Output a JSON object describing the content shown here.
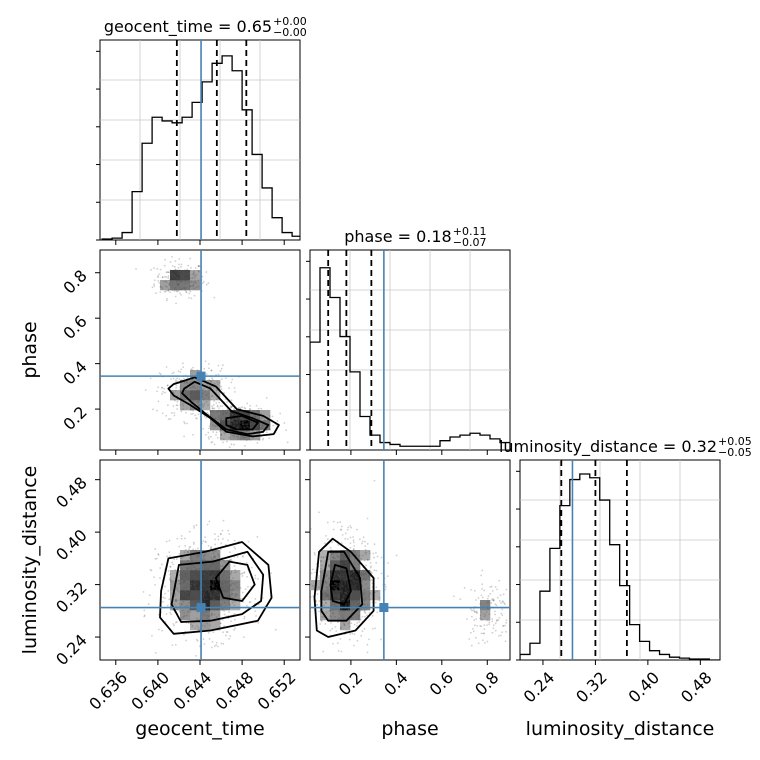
{
  "chart_data": {
    "type": "corner",
    "colors": {
      "truth": "#4682b4",
      "hist": "#000000",
      "density": "#808080",
      "grid": "#c8c8c8"
    },
    "grid": true,
    "params": [
      {
        "key": "geocent_time",
        "label": "geocent_time",
        "truth": 0.6441,
        "range": [
          0.6345,
          0.6535
        ],
        "ticks": [
          "0.636",
          "0.640",
          "0.644",
          "0.648",
          "0.652"
        ]
      },
      {
        "key": "phase",
        "label": "phase",
        "truth": 0.345,
        "range": [
          0.02,
          0.9
        ],
        "ticks": [
          "0.2",
          "0.4",
          "0.6",
          "0.8"
        ]
      },
      {
        "key": "luminosity_distance",
        "label": "luminosity_distance",
        "truth": 0.285,
        "range": [
          0.205,
          0.51
        ],
        "ticks": [
          "0.24",
          "0.32",
          "0.40",
          "0.48"
        ]
      }
    ],
    "titles": [
      {
        "param": "geocent_time",
        "name": "geocent_time",
        "value": "0.65",
        "plus": "+0.00",
        "minus": "−0.00"
      },
      {
        "param": "phase",
        "name": "phase",
        "value": "0.18",
        "plus": "+0.11",
        "minus": "−0.07"
      },
      {
        "param": "luminosity_distance",
        "name": "luminosity_distance",
        "value": "0.32",
        "plus": "+0.05",
        "minus": "−0.05"
      }
    ],
    "quantiles": {
      "geocent_time": [
        0.6418,
        0.6456,
        0.6484
      ],
      "phase": [
        0.1,
        0.18,
        0.29
      ],
      "luminosity_distance": [
        0.268,
        0.32,
        0.368
      ]
    },
    "histograms": {
      "geocent_time": {
        "edges_start": 0.6347,
        "bin_width": 0.00095,
        "counts": [
          0.005,
          0.01,
          0.04,
          0.26,
          0.52,
          0.66,
          0.64,
          0.63,
          0.66,
          0.74,
          0.85,
          0.95,
          0.99,
          0.91,
          0.7,
          0.46,
          0.28,
          0.12,
          0.04,
          0.02
        ]
      },
      "phase": {
        "edges_start": 0.02,
        "bin_width": 0.044,
        "counts": [
          0.58,
          0.98,
          0.82,
          0.61,
          0.42,
          0.18,
          0.08,
          0.04,
          0.03,
          0.02,
          0.02,
          0.02,
          0.02,
          0.05,
          0.07,
          0.08,
          0.09,
          0.08,
          0.06,
          0.04
        ]
      },
      "luminosity_distance": {
        "edges_start": 0.205,
        "bin_width": 0.0152,
        "counts": [
          0.03,
          0.09,
          0.37,
          0.6,
          0.83,
          0.97,
          1.0,
          0.98,
          0.86,
          0.62,
          0.4,
          0.19,
          0.1,
          0.05,
          0.03,
          0.015,
          0.01,
          0.005,
          0.005,
          0.0
        ]
      }
    },
    "samples_2d": [
      {
        "x": "geocent_time",
        "y": "phase",
        "clusters": [
          {
            "cx": 0.6421,
            "cy": 0.77,
            "sx": 0.0012,
            "sy": 0.04,
            "n": 220
          },
          {
            "cx": 0.6435,
            "cy": 0.27,
            "sx": 0.0016,
            "sy": 0.06,
            "n": 320
          },
          {
            "cx": 0.6478,
            "cy": 0.14,
            "sx": 0.0016,
            "sy": 0.04,
            "n": 420
          }
        ]
      },
      {
        "x": "geocent_time",
        "y": "luminosity_distance",
        "clusters": [
          {
            "cx": 0.6445,
            "cy": 0.315,
            "sx": 0.0021,
            "sy": 0.037,
            "n": 850
          }
        ]
      },
      {
        "x": "phase",
        "y": "luminosity_distance",
        "clusters": [
          {
            "cx": 0.17,
            "cy": 0.32,
            "sx": 0.07,
            "sy": 0.037,
            "n": 760
          },
          {
            "cx": 0.8,
            "cy": 0.28,
            "sx": 0.05,
            "sy": 0.025,
            "n": 130
          }
        ]
      }
    ],
    "contours": [
      {
        "x": "geocent_time",
        "y": "phase",
        "levels": [
          [
            [
              0.6415,
              0.31
            ],
            [
              0.6435,
              0.34
            ],
            [
              0.6455,
              0.3
            ],
            [
              0.6475,
              0.2
            ],
            [
              0.65,
              0.17
            ],
            [
              0.6515,
              0.13
            ],
            [
              0.651,
              0.09
            ],
            [
              0.649,
              0.08
            ],
            [
              0.6465,
              0.1
            ],
            [
              0.645,
              0.16
            ],
            [
              0.643,
              0.22
            ],
            [
              0.6415,
              0.26
            ],
            [
              0.641,
              0.29
            ]
          ],
          [
            [
              0.6425,
              0.29
            ],
            [
              0.6435,
              0.32
            ],
            [
              0.645,
              0.29
            ],
            [
              0.647,
              0.19
            ],
            [
              0.649,
              0.16
            ],
            [
              0.6505,
              0.13
            ],
            [
              0.65,
              0.1
            ],
            [
              0.6485,
              0.09
            ],
            [
              0.6465,
              0.11
            ],
            [
              0.6448,
              0.17
            ],
            [
              0.6432,
              0.23
            ],
            [
              0.6423,
              0.27
            ]
          ],
          [
            [
              0.6465,
              0.16
            ],
            [
              0.648,
              0.17
            ],
            [
              0.6495,
              0.14
            ],
            [
              0.649,
              0.11
            ],
            [
              0.6475,
              0.11
            ],
            [
              0.6465,
              0.13
            ]
          ]
        ]
      },
      {
        "x": "geocent_time",
        "y": "luminosity_distance",
        "levels": [
          [
            [
              0.6403,
              0.31
            ],
            [
              0.641,
              0.36
            ],
            [
              0.6445,
              0.37
            ],
            [
              0.648,
              0.385
            ],
            [
              0.6505,
              0.35
            ],
            [
              0.6508,
              0.3
            ],
            [
              0.6495,
              0.265
            ],
            [
              0.645,
              0.25
            ],
            [
              0.6415,
              0.245
            ],
            [
              0.6402,
              0.27
            ]
          ],
          [
            [
              0.6413,
              0.29
            ],
            [
              0.642,
              0.35
            ],
            [
              0.6452,
              0.355
            ],
            [
              0.6485,
              0.37
            ],
            [
              0.65,
              0.335
            ],
            [
              0.6498,
              0.295
            ],
            [
              0.648,
              0.275
            ],
            [
              0.645,
              0.265
            ],
            [
              0.6422,
              0.263
            ]
          ],
          [
            [
              0.6455,
              0.33
            ],
            [
              0.6468,
              0.355
            ],
            [
              0.6485,
              0.35
            ],
            [
              0.6492,
              0.32
            ],
            [
              0.648,
              0.295
            ],
            [
              0.6462,
              0.3
            ]
          ]
        ]
      },
      {
        "x": "phase",
        "y": "luminosity_distance",
        "levels": [
          [
            [
              0.04,
              0.3
            ],
            [
              0.06,
              0.37
            ],
            [
              0.12,
              0.39
            ],
            [
              0.2,
              0.37
            ],
            [
              0.3,
              0.33
            ],
            [
              0.3,
              0.28
            ],
            [
              0.22,
              0.25
            ],
            [
              0.1,
              0.24
            ],
            [
              0.05,
              0.25
            ]
          ],
          [
            [
              0.07,
              0.31
            ],
            [
              0.1,
              0.37
            ],
            [
              0.17,
              0.37
            ],
            [
              0.24,
              0.33
            ],
            [
              0.25,
              0.29
            ],
            [
              0.18,
              0.265
            ],
            [
              0.1,
              0.265
            ],
            [
              0.07,
              0.28
            ]
          ],
          [
            [
              0.11,
              0.32
            ],
            [
              0.13,
              0.35
            ],
            [
              0.18,
              0.345
            ],
            [
              0.2,
              0.31
            ],
            [
              0.17,
              0.29
            ],
            [
              0.12,
              0.295
            ]
          ]
        ]
      }
    ]
  }
}
